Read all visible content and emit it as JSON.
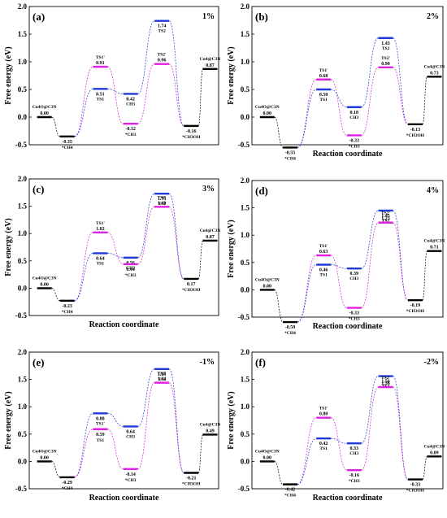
{
  "colors": {
    "black": "#000000",
    "magenta": "#e020e0",
    "blue": "#1f3ad8"
  },
  "chart_data": [
    {
      "type": "line",
      "panel": "(a)",
      "strain": "1%",
      "ylabel": "Free energy (eV)",
      "xlabel": "",
      "ylim": [
        -0.5,
        2.0
      ],
      "yticks": [
        "-0.5",
        "0.0",
        "0.5",
        "1.0",
        "1.5",
        "2.0"
      ],
      "levels": [
        {
          "x": 0,
          "y": 0.0,
          "color": "black",
          "value": "0.00",
          "name": "Cu4O@C3N"
        },
        {
          "x": 1,
          "y": -0.35,
          "color": "black",
          "value": "-0.35",
          "name": "*CH4"
        },
        {
          "x": 2,
          "y": 0.91,
          "color": "magenta",
          "value": "0.91",
          "name": "TS1'"
        },
        {
          "x": 2,
          "y": 0.51,
          "color": "blue",
          "value": "0.51",
          "name": "TS1"
        },
        {
          "x": 3,
          "y": 0.42,
          "color": "blue",
          "value": "0.42",
          "name": "CH3"
        },
        {
          "x": 3,
          "y": -0.12,
          "color": "magenta",
          "value": "-0.12",
          "name": "*CH3"
        },
        {
          "x": 4,
          "y": 1.74,
          "color": "blue",
          "value": "1.74",
          "name": "TS2"
        },
        {
          "x": 4,
          "y": 0.96,
          "color": "magenta",
          "value": "0.96",
          "name": "TS2'"
        },
        {
          "x": 5,
          "y": -0.16,
          "color": "black",
          "value": "-0.16",
          "name": "*CH3OH"
        },
        {
          "x": 6,
          "y": 0.87,
          "color": "black",
          "value": "0.87",
          "name": "Cu4@C3N"
        }
      ]
    },
    {
      "type": "line",
      "panel": "(b)",
      "strain": "2%",
      "ylabel": "Free energy (eV)",
      "xlabel": "Reaction coordinate",
      "ylim": [
        -0.5,
        2.0
      ],
      "yticks": [
        "-0.5",
        "0.0",
        "0.5",
        "1.0",
        "1.5",
        "2.0"
      ],
      "levels": [
        {
          "x": 0,
          "y": 0.0,
          "color": "black",
          "value": "0.00",
          "name": "Cu4O@C3N"
        },
        {
          "x": 1,
          "y": -0.55,
          "color": "black",
          "value": "-0.55",
          "name": "*CH4"
        },
        {
          "x": 2,
          "y": 0.68,
          "color": "magenta",
          "value": "0.68",
          "name": "TS1'"
        },
        {
          "x": 2,
          "y": 0.5,
          "color": "blue",
          "value": "0.50",
          "name": "TS1"
        },
        {
          "x": 3,
          "y": 0.18,
          "color": "blue",
          "value": "0.18",
          "name": "CH3"
        },
        {
          "x": 3,
          "y": -0.33,
          "color": "magenta",
          "value": "-0.33",
          "name": "*CH3"
        },
        {
          "x": 4,
          "y": 1.43,
          "color": "blue",
          "value": "1.43",
          "name": "TS2"
        },
        {
          "x": 4,
          "y": 0.9,
          "color": "magenta",
          "value": "0.90",
          "name": "TS2'"
        },
        {
          "x": 5,
          "y": -0.13,
          "color": "black",
          "value": "-0.13",
          "name": "*CH3OH"
        },
        {
          "x": 6,
          "y": 0.73,
          "color": "black",
          "value": "0.73",
          "name": "Cu4@C3N"
        }
      ]
    },
    {
      "type": "line",
      "panel": "(c)",
      "strain": "3%",
      "ylabel": "Free energy (eV)",
      "xlabel": "Reaction coordinate",
      "ylim": [
        -0.5,
        2.0
      ],
      "yticks": [
        "-0.5",
        "0.0",
        "0.5",
        "1.0",
        "1.5",
        "2.0"
      ],
      "levels": [
        {
          "x": 0,
          "y": 0.0,
          "color": "black",
          "value": "0.00",
          "name": "Cu4O@C3N"
        },
        {
          "x": 1,
          "y": -0.23,
          "color": "black",
          "value": "-0.23",
          "name": "*CH4"
        },
        {
          "x": 2,
          "y": 1.02,
          "color": "magenta",
          "value": "1.02",
          "name": "TS1'"
        },
        {
          "x": 2,
          "y": 0.64,
          "color": "blue",
          "value": "0.64",
          "name": "TS1"
        },
        {
          "x": 3,
          "y": 0.56,
          "color": "blue",
          "value": "0.56",
          "name": "CH3"
        },
        {
          "x": 3,
          "y": 0.44,
          "color": "magenta",
          "value": "0.44",
          "name": "*CH3"
        },
        {
          "x": 4,
          "y": 1.73,
          "color": "blue",
          "value": "1.73",
          "name": "TS2"
        },
        {
          "x": 4,
          "y": 1.49,
          "color": "magenta",
          "value": "1.49",
          "name": "TS2'"
        },
        {
          "x": 5,
          "y": 0.17,
          "color": "black",
          "value": "0.17",
          "name": "*CH3OH"
        },
        {
          "x": 6,
          "y": 0.87,
          "color": "black",
          "value": "0.87",
          "name": "Cu4@C3N"
        }
      ]
    },
    {
      "type": "line",
      "panel": "(d)",
      "strain": "4%",
      "ylabel": "Free energy (eV)",
      "xlabel": "Reaction coordinate",
      "ylim": [
        -0.5,
        2.0
      ],
      "yticks": [
        "-0.5",
        "0.0",
        "0.5",
        "1.0",
        "1.5",
        "2.0"
      ],
      "levels": [
        {
          "x": 0,
          "y": 0.0,
          "color": "black",
          "value": "0.00",
          "name": "Cu4O@C3N"
        },
        {
          "x": 1,
          "y": -0.59,
          "color": "black",
          "value": "-0.59",
          "name": "*CH4"
        },
        {
          "x": 2,
          "y": 0.63,
          "color": "magenta",
          "value": "0.63",
          "name": "TS1'"
        },
        {
          "x": 2,
          "y": 0.46,
          "color": "blue",
          "value": "0.46",
          "name": "TS1"
        },
        {
          "x": 3,
          "y": 0.39,
          "color": "blue",
          "value": "0.39",
          "name": "CH3"
        },
        {
          "x": 3,
          "y": -0.33,
          "color": "magenta",
          "value": "-0.33",
          "name": "*CH3"
        },
        {
          "x": 4,
          "y": 1.45,
          "color": "blue",
          "value": "1.45",
          "name": "TS2"
        },
        {
          "x": 4,
          "y": 1.23,
          "color": "magenta",
          "value": "1.23",
          "name": "TS2'"
        },
        {
          "x": 5,
          "y": -0.19,
          "color": "black",
          "value": "-0.19",
          "name": "*CH3OH"
        },
        {
          "x": 6,
          "y": 0.71,
          "color": "black",
          "value": "0.71",
          "name": "Cu4@C3N"
        }
      ]
    },
    {
      "type": "line",
      "panel": "(e)",
      "strain": "-1%",
      "ylabel": "Free energy (eV)",
      "xlabel": "Reaction coordinate",
      "ylim": [
        -0.5,
        2.0
      ],
      "yticks": [
        "-0.5",
        "0.0",
        "0.5",
        "1.0",
        "1.5",
        "2.0"
      ],
      "levels": [
        {
          "x": 0,
          "y": 0.0,
          "color": "black",
          "value": "0.00",
          "name": "Cu4O@C3N"
        },
        {
          "x": 1,
          "y": -0.29,
          "color": "black",
          "value": "-0.29",
          "name": "*CH4"
        },
        {
          "x": 2,
          "y": 0.88,
          "color": "blue",
          "value": "0.88",
          "name": "TS1'"
        },
        {
          "x": 2,
          "y": 0.59,
          "color": "magenta",
          "value": "0.59",
          "name": "TS1"
        },
        {
          "x": 3,
          "y": 0.64,
          "color": "blue",
          "value": "0.64",
          "name": "CH3"
        },
        {
          "x": 3,
          "y": -0.14,
          "color": "magenta",
          "value": "-0.14",
          "name": "*CH3"
        },
        {
          "x": 4,
          "y": 1.69,
          "color": "blue",
          "value": "1.69",
          "name": "TS2"
        },
        {
          "x": 4,
          "y": 1.44,
          "color": "magenta",
          "value": "1.44",
          "name": "TS2'"
        },
        {
          "x": 5,
          "y": -0.21,
          "color": "black",
          "value": "-0.21",
          "name": "*CH3OH"
        },
        {
          "x": 6,
          "y": 0.49,
          "color": "black",
          "value": "0.49",
          "name": "Cu4@C3N"
        }
      ]
    },
    {
      "type": "line",
      "panel": "(f)",
      "strain": "-2%",
      "ylabel": "Free energy (eV)",
      "xlabel": "Reaction coordinate",
      "ylim": [
        -0.5,
        2.0
      ],
      "yticks": [
        "-0.5",
        "0.0",
        "0.5",
        "1.0",
        "1.5",
        "2.0"
      ],
      "levels": [
        {
          "x": 0,
          "y": 0.0,
          "color": "black",
          "value": "0.00",
          "name": "Cu4O@C3N"
        },
        {
          "x": 1,
          "y": -0.42,
          "color": "black",
          "value": "-0.42",
          "name": "*CH4"
        },
        {
          "x": 2,
          "y": 0.8,
          "color": "magenta",
          "value": "0.80",
          "name": "TS1'"
        },
        {
          "x": 2,
          "y": 0.42,
          "color": "blue",
          "value": "0.42",
          "name": "TS1"
        },
        {
          "x": 3,
          "y": 0.33,
          "color": "blue",
          "value": "0.33",
          "name": "CH3"
        },
        {
          "x": 3,
          "y": -0.16,
          "color": "magenta",
          "value": "-0.16",
          "name": "*CH3"
        },
        {
          "x": 4,
          "y": 1.56,
          "color": "blue",
          "value": "1.56",
          "name": "TS2"
        },
        {
          "x": 4,
          "y": 1.36,
          "color": "magenta",
          "value": "1.36",
          "name": "TS2'"
        },
        {
          "x": 5,
          "y": -0.33,
          "color": "black",
          "value": "-0.33",
          "name": "*CH3OH"
        },
        {
          "x": 6,
          "y": 0.09,
          "color": "black",
          "value": "0.09",
          "name": "Cu4@C3N"
        }
      ]
    }
  ]
}
